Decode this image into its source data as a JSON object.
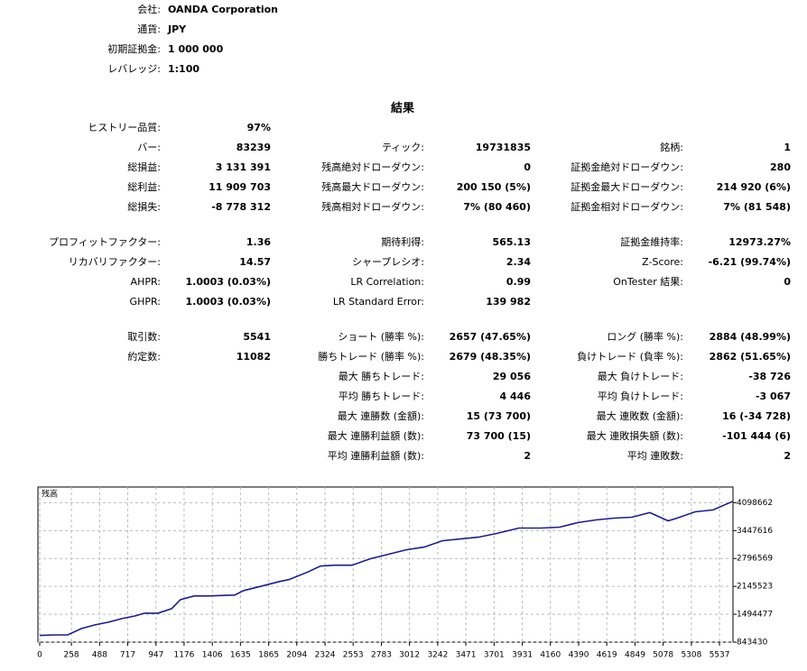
{
  "header": {
    "rows": [
      {
        "label": "会社:",
        "value": "OANDA Corporation"
      },
      {
        "label": "通貨:",
        "value": "JPY"
      },
      {
        "label": "初期証拠金:",
        "value": "1 000 000"
      },
      {
        "label": "レバレッジ:",
        "value": "1:100"
      }
    ]
  },
  "results": {
    "title": "結果",
    "groups": [
      [
        [
          {
            "label": "ヒストリー品質:",
            "value": "97%"
          },
          null,
          null
        ],
        [
          {
            "label": "バー:",
            "value": "83239"
          },
          {
            "label": "ティック:",
            "value": "19731835"
          },
          {
            "label": "銘柄:",
            "value": "1"
          }
        ],
        [
          {
            "label": "総損益:",
            "value": "3 131 391"
          },
          {
            "label": "残高絶対ドローダウン:",
            "value": "0"
          },
          {
            "label": "証拠金絶対ドローダウン:",
            "value": "280"
          }
        ],
        [
          {
            "label": "総利益:",
            "value": "11 909 703"
          },
          {
            "label": "残高最大ドローダウン:",
            "value": "200 150 (5%)"
          },
          {
            "label": "証拠金最大ドローダウン:",
            "value": "214 920 (6%)"
          }
        ],
        [
          {
            "label": "総損失:",
            "value": "-8 778 312"
          },
          {
            "label": "残高相対ドローダウン:",
            "value": "7% (80 460)"
          },
          {
            "label": "証拠金相対ドローダウン:",
            "value": "7% (81 548)"
          }
        ]
      ],
      [
        [
          {
            "label": "プロフィットファクター:",
            "value": "1.36"
          },
          {
            "label": "期待利得:",
            "value": "565.13"
          },
          {
            "label": "証拠金維持率:",
            "value": "12973.27%"
          }
        ],
        [
          {
            "label": "リカバリファクター:",
            "value": "14.57"
          },
          {
            "label": "シャープレシオ:",
            "value": "2.34"
          },
          {
            "label": "Z-Score:",
            "value": "-6.21 (99.74%)"
          }
        ],
        [
          {
            "label": "AHPR:",
            "value": "1.0003 (0.03%)"
          },
          {
            "label": "LR Correlation:",
            "value": "0.99"
          },
          {
            "label": "OnTester 結果:",
            "value": "0"
          }
        ],
        [
          {
            "label": "GHPR:",
            "value": "1.0003 (0.03%)"
          },
          {
            "label": "LR Standard Error:",
            "value": "139 982"
          },
          null
        ]
      ],
      [
        [
          {
            "label": "取引数:",
            "value": "5541"
          },
          {
            "label": "ショート (勝率 %):",
            "value": "2657 (47.65%)"
          },
          {
            "label": "ロング (勝率 %):",
            "value": "2884 (48.99%)"
          }
        ],
        [
          {
            "label": "約定数:",
            "value": "11082"
          },
          {
            "label": "勝ちトレード (勝率 %):",
            "value": "2679 (48.35%)"
          },
          {
            "label": "負けトレード (負率 %):",
            "value": "2862 (51.65%)"
          }
        ],
        [
          null,
          {
            "label": "最大 勝ちトレード:",
            "value": "29 056"
          },
          {
            "label": "最大 負けトレード:",
            "value": "-38 726"
          }
        ],
        [
          null,
          {
            "label": "平均 勝ちトレード:",
            "value": "4 446"
          },
          {
            "label": "平均 負けトレード:",
            "value": "-3 067"
          }
        ],
        [
          null,
          {
            "label": "最大 連勝数 (金額):",
            "value": "15 (73 700)"
          },
          {
            "label": "最大 連敗数 (金額):",
            "value": "16 (-34 728)"
          }
        ],
        [
          null,
          {
            "label": "最大 連勝利益額 (数):",
            "value": "73 700 (15)"
          },
          {
            "label": "最大 連敗損失額 (数):",
            "value": "-101 444 (6)"
          }
        ],
        [
          null,
          {
            "label": "平均 連勝利益額 (数):",
            "value": "2"
          },
          {
            "label": "平均 連敗数:",
            "value": "2"
          }
        ]
      ]
    ]
  },
  "chart_data": {
    "type": "line",
    "title": "残高",
    "color": "#1c1c8e",
    "grid": true,
    "x": [
      0,
      118,
      228,
      338,
      449,
      559,
      669,
      779,
      853,
      963,
      1074,
      1147,
      1257,
      1368,
      1588,
      1662,
      1809,
      1956,
      2029,
      2176,
      2287,
      2397,
      2544,
      2691,
      2838,
      2985,
      3132,
      3279,
      3427,
      3574,
      3721,
      3904,
      4088,
      4235,
      4382,
      4529,
      4676,
      4823,
      4970,
      5118,
      5191,
      5338,
      5485,
      5647
    ],
    "values": [
      1000000,
      1012000,
      1012000,
      1160000,
      1245000,
      1308000,
      1393000,
      1456000,
      1520000,
      1520000,
      1625000,
      1837000,
      1921000,
      1921000,
      1943000,
      2048000,
      2154000,
      2260000,
      2302000,
      2471000,
      2619000,
      2640000,
      2640000,
      2788000,
      2894000,
      3000000,
      3063000,
      3211000,
      3253000,
      3295000,
      3380000,
      3507000,
      3507000,
      3528000,
      3634000,
      3697000,
      3739000,
      3760000,
      3866000,
      3676000,
      3739000,
      3887000,
      3930000,
      4131391
    ],
    "xlim": [
      0,
      5647
    ],
    "ylim": [
      843430,
      4465000
    ],
    "xticks": [
      0,
      258,
      488,
      717,
      947,
      1176,
      1406,
      1635,
      1865,
      2094,
      2324,
      2553,
      2783,
      3012,
      3242,
      3471,
      3701,
      3931,
      4160,
      4390,
      4619,
      4849,
      5078,
      5308,
      5537
    ],
    "yticks": [
      843430,
      1494477,
      2145523,
      2796569,
      3447616,
      4098662
    ]
  }
}
